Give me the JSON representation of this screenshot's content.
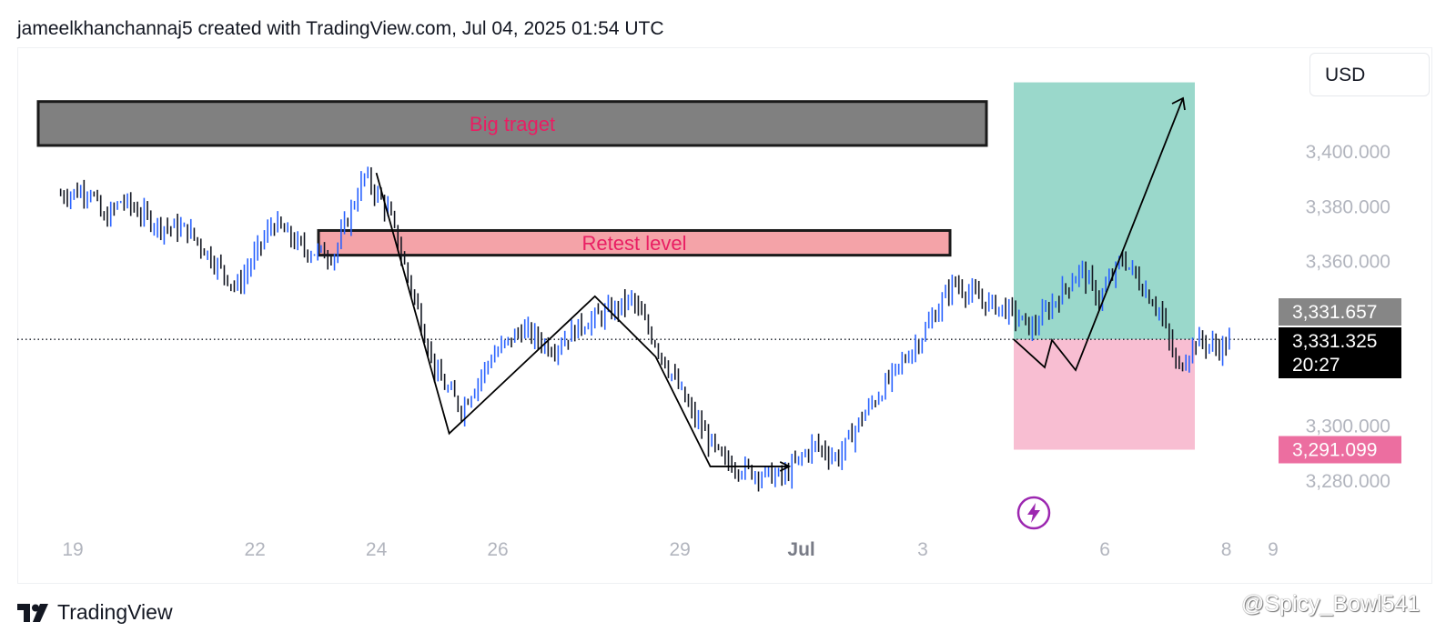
{
  "header": {
    "text": "jameelkhanchannaj5 created with TradingView.com, Jul 04, 2025 01:54 UTC"
  },
  "currency_button": {
    "label": "USD"
  },
  "footer": {
    "logo_text": "TradingView"
  },
  "watermark": {
    "text": "@Spicy_Bowl541"
  },
  "colors": {
    "up_candle": "#2962ff",
    "down_candle": "#131722",
    "big_target_fill": "#808080",
    "retest_fill": "#f4a3a8",
    "zone_label": "#e91e63",
    "profit_zone": "#9ad8cb",
    "loss_zone": "#f8bed2",
    "price_tag_gray": "#868686",
    "price_tag_black": "#000000",
    "price_tag_pink": "#ec6ea0",
    "lightning_icon": "#9c27b0"
  },
  "chart_data": {
    "type": "candlestick",
    "symbol_currency": "USD",
    "ylim": [
      3270,
      3430
    ],
    "y_ticks": [
      3280,
      3300,
      3360,
      3380,
      3400
    ],
    "y_tick_labels": [
      "3,280.000",
      "3,300.000",
      "3,360.000",
      "3,380.000",
      "3,400.000"
    ],
    "x_tick_labels": [
      {
        "label": "19",
        "day": 0
      },
      {
        "label": "22",
        "day": 3
      },
      {
        "label": "24",
        "day": 5
      },
      {
        "label": "26",
        "day": 7
      },
      {
        "label": "29",
        "day": 10
      },
      {
        "label": "Jul",
        "day": 12
      },
      {
        "label": "3",
        "day": 14
      },
      {
        "label": "6",
        "day": 17
      },
      {
        "label": "8",
        "day": 19
      },
      {
        "label": "9",
        "day": 20
      }
    ],
    "price_trend": [
      {
        "day": -0.2,
        "p": 3384
      },
      {
        "day": 0.3,
        "p": 3386
      },
      {
        "day": 0.5,
        "p": 3374
      },
      {
        "day": 0.8,
        "p": 3382
      },
      {
        "day": 1.4,
        "p": 3373
      },
      {
        "day": 1.9,
        "p": 3371
      },
      {
        "day": 2.7,
        "p": 3350
      },
      {
        "day": 3.3,
        "p": 3374
      },
      {
        "day": 3.8,
        "p": 3364
      },
      {
        "day": 4.3,
        "p": 3362
      },
      {
        "day": 4.8,
        "p": 3391
      },
      {
        "day": 5.2,
        "p": 3378
      },
      {
        "day": 5.6,
        "p": 3348
      },
      {
        "day": 6.0,
        "p": 3318
      },
      {
        "day": 6.4,
        "p": 3306
      },
      {
        "day": 6.9,
        "p": 3325
      },
      {
        "day": 7.4,
        "p": 3335
      },
      {
        "day": 7.9,
        "p": 3328
      },
      {
        "day": 8.4,
        "p": 3337
      },
      {
        "day": 9.0,
        "p": 3343
      },
      {
        "day": 9.2,
        "p": 3346
      },
      {
        "day": 9.6,
        "p": 3330
      },
      {
        "day": 10.2,
        "p": 3304
      },
      {
        "day": 10.7,
        "p": 3287
      },
      {
        "day": 11.2,
        "p": 3283
      },
      {
        "day": 11.7,
        "p": 3281
      },
      {
        "day": 12.2,
        "p": 3293
      },
      {
        "day": 12.6,
        "p": 3288
      },
      {
        "day": 13.0,
        "p": 3303
      },
      {
        "day": 13.5,
        "p": 3318
      },
      {
        "day": 14.0,
        "p": 3333
      },
      {
        "day": 14.5,
        "p": 3352
      },
      {
        "day": 15.0,
        "p": 3345
      },
      {
        "day": 15.4,
        "p": 3342
      },
      {
        "day": 15.8,
        "p": 3335
      },
      {
        "day": 16.2,
        "p": 3346
      },
      {
        "day": 16.6,
        "p": 3357
      },
      {
        "day": 16.9,
        "p": 3346
      },
      {
        "day": 17.3,
        "p": 3361
      },
      {
        "day": 17.6,
        "p": 3351
      },
      {
        "day": 17.9,
        "p": 3342
      },
      {
        "day": 18.2,
        "p": 3320
      },
      {
        "day": 18.5,
        "p": 3331
      },
      {
        "day": 18.9,
        "p": 3328
      },
      {
        "day": 19.1,
        "p": 3331
      }
    ],
    "zones": [
      {
        "label": "Big traget",
        "y_top": 3418,
        "y_bottom": 3402
      },
      {
        "label": "Retest level",
        "y_top": 3371,
        "y_bottom": 3362
      }
    ],
    "position": {
      "entry": 3331.325,
      "target": 3425,
      "stop": 3291.099
    },
    "price_tags": [
      {
        "label": "3,331.657",
        "price": 3331.657,
        "style": "gray"
      },
      {
        "label": "3,331.325",
        "price": 3331.325,
        "countdown": "20:27",
        "style": "black"
      },
      {
        "label": "3,291.099",
        "price": 3291.099,
        "style": "pink"
      }
    ],
    "last_price_line": 3331.325
  }
}
